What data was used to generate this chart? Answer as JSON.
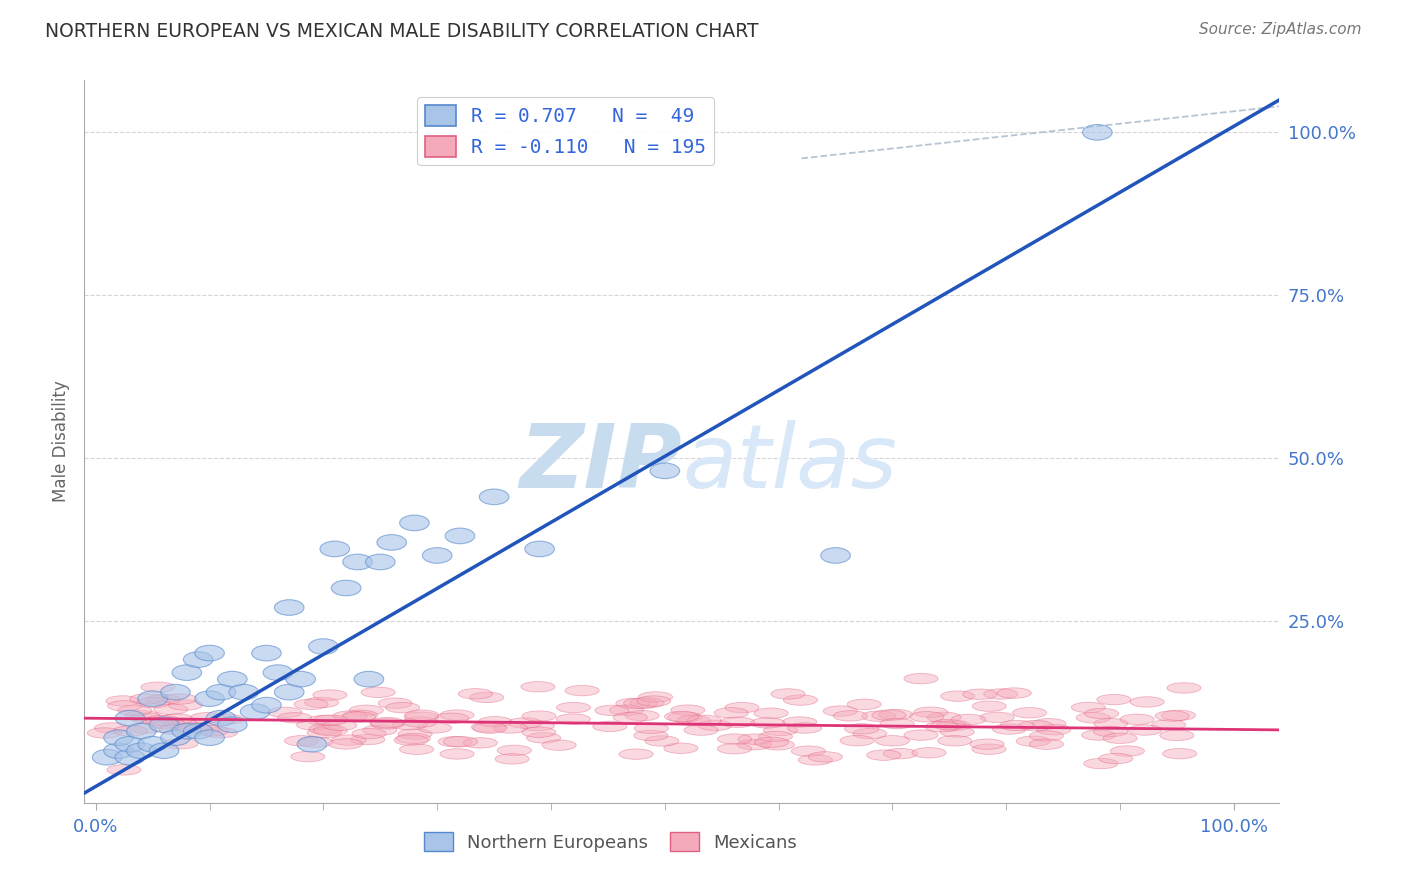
{
  "title": "NORTHERN EUROPEAN VS MEXICAN MALE DISABILITY CORRELATION CHART",
  "source": "Source: ZipAtlas.com",
  "ylabel": "Male Disability",
  "blue_R": 0.707,
  "blue_N": 49,
  "pink_R": -0.11,
  "pink_N": 195,
  "blue_fill": "#A8C4E8",
  "blue_edge": "#5588CC",
  "pink_fill": "#F5AABB",
  "pink_edge": "#E06080",
  "blue_line": "#2255BB",
  "pink_line": "#DD3377",
  "title_color": "#333333",
  "axis_tick_color": "#4477CC",
  "legend_text_color": "#3366DD",
  "watermark_color": "#C8DCF0",
  "grid_color": "#BBBBBB",
  "ref_line_color": "#AABBCC",
  "ytick_positions": [
    0.0,
    0.25,
    0.5,
    0.75,
    1.0
  ],
  "ytick_labels": [
    "",
    "25.0%",
    "50.0%",
    "75.0%",
    "100.0%"
  ],
  "xtick_positions": [
    0.0,
    1.0
  ],
  "xtick_labels": [
    "0.0%",
    "100.0%"
  ],
  "blue_scatter_x": [
    0.01,
    0.02,
    0.02,
    0.03,
    0.03,
    0.03,
    0.04,
    0.04,
    0.05,
    0.05,
    0.06,
    0.06,
    0.07,
    0.07,
    0.08,
    0.08,
    0.09,
    0.09,
    0.1,
    0.1,
    0.1,
    0.11,
    0.11,
    0.12,
    0.12,
    0.13,
    0.14,
    0.15,
    0.15,
    0.16,
    0.17,
    0.17,
    0.18,
    0.19,
    0.2,
    0.21,
    0.22,
    0.23,
    0.24,
    0.25,
    0.26,
    0.28,
    0.3,
    0.32,
    0.35,
    0.39,
    0.5,
    0.65,
    0.88
  ],
  "blue_scatter_y": [
    0.04,
    0.05,
    0.07,
    0.04,
    0.06,
    0.1,
    0.05,
    0.08,
    0.06,
    0.13,
    0.05,
    0.09,
    0.07,
    0.14,
    0.08,
    0.17,
    0.08,
    0.19,
    0.07,
    0.13,
    0.2,
    0.1,
    0.14,
    0.09,
    0.16,
    0.14,
    0.11,
    0.12,
    0.2,
    0.17,
    0.14,
    0.27,
    0.16,
    0.06,
    0.21,
    0.36,
    0.3,
    0.34,
    0.16,
    0.34,
    0.37,
    0.4,
    0.35,
    0.38,
    0.44,
    0.36,
    0.48,
    0.35,
    1.0
  ]
}
